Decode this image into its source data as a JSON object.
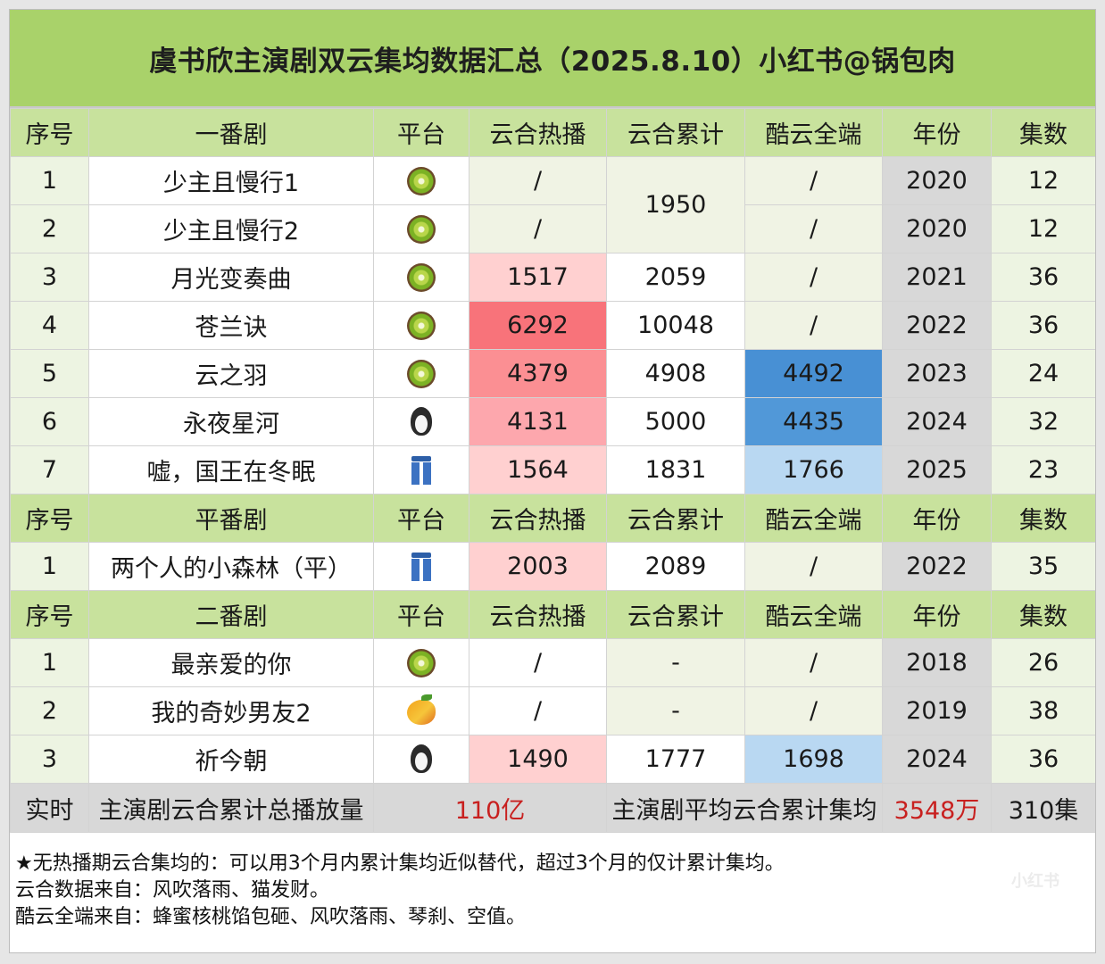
{
  "title": "虞书欣主演剧双云集均数据汇总（2025.8.10）小红书@锅包肉",
  "headers": {
    "lead": [
      "序号",
      "一番剧",
      "平台",
      "云合热播",
      "云合累计",
      "酷云全端",
      "年份",
      "集数"
    ],
    "flat": [
      "序号",
      "平番剧",
      "平台",
      "云合热播",
      "云合累计",
      "酷云全端",
      "年份",
      "集数"
    ],
    "second": [
      "序号",
      "二番剧",
      "平台",
      "云合热播",
      "云合累计",
      "酷云全端",
      "年份",
      "集数"
    ]
  },
  "lead_rows": [
    {
      "idx": "1",
      "name": "少主且慢行1",
      "platform_icon": "kiwi-icon",
      "hot": "/",
      "acc": "1950",
      "kuyun": "/",
      "year": "2020",
      "eps": "12"
    },
    {
      "idx": "2",
      "name": "少主且慢行2",
      "platform_icon": "kiwi-icon",
      "hot": "/",
      "kuyun": "/",
      "year": "2020",
      "eps": "12"
    },
    {
      "idx": "3",
      "name": "月光变奏曲",
      "platform_icon": "kiwi-icon",
      "hot": "1517",
      "acc": "2059",
      "kuyun": "/",
      "year": "2021",
      "eps": "36"
    },
    {
      "idx": "4",
      "name": "苍兰诀",
      "platform_icon": "kiwi-icon",
      "hot": "6292",
      "acc": "10048",
      "kuyun": "/",
      "year": "2022",
      "eps": "36"
    },
    {
      "idx": "5",
      "name": "云之羽",
      "platform_icon": "kiwi-icon",
      "hot": "4379",
      "acc": "4908",
      "kuyun": "4492",
      "year": "2023",
      "eps": "24"
    },
    {
      "idx": "6",
      "name": "永夜星河",
      "platform_icon": "penguin-icon",
      "hot": "4131",
      "acc": "5000",
      "kuyun": "4435",
      "year": "2024",
      "eps": "32"
    },
    {
      "idx": "7",
      "name": "嘘，国王在冬眠",
      "platform_icon": "jeans-icon",
      "hot": "1564",
      "acc": "1831",
      "kuyun": "1766",
      "year": "2025",
      "eps": "23"
    }
  ],
  "flat_rows": [
    {
      "idx": "1",
      "name": "两个人的小森林（平）",
      "platform_icon": "jeans-icon",
      "hot": "2003",
      "acc": "2089",
      "kuyun": "/",
      "year": "2022",
      "eps": "35"
    }
  ],
  "second_rows": [
    {
      "idx": "1",
      "name": "最亲爱的你",
      "platform_icon": "kiwi-icon",
      "hot": "/",
      "acc": "-",
      "kuyun": "/",
      "year": "2018",
      "eps": "26"
    },
    {
      "idx": "2",
      "name": "我的奇妙男友2",
      "platform_icon": "mango-icon",
      "hot": "/",
      "acc": "-",
      "kuyun": "/",
      "year": "2019",
      "eps": "38"
    },
    {
      "idx": "3",
      "name": "祈今朝",
      "platform_icon": "penguin-icon",
      "hot": "1490",
      "acc": "1777",
      "kuyun": "1698",
      "year": "2024",
      "eps": "36"
    }
  ],
  "summary": {
    "label": "实时",
    "total_label": "主演剧云合累计总播放量",
    "total_value": "110亿",
    "avg_label": "主演剧平均云合累计集均",
    "avg_value": "3548万",
    "episodes": "310集"
  },
  "notes": [
    "★无热播期云合集均的：可以用3个月内累计集均近似替代，超过3个月的仅计累计集均。",
    "云合数据来自：风吹落雨、猫发财。",
    "酷云全端来自：蜂蜜核桃馅包砸、风吹落雨、琴刹、空值。"
  ],
  "watermark": "小红书",
  "colors": {
    "title_bg": "#a9d26a",
    "header_bg": "#c8e29d",
    "hot_strong": "#f8737a",
    "hot_light": "#ffd0d0",
    "kuyun_strong": "#4890d4",
    "kuyun_light": "#b9d8f2",
    "summary_value": "#c8201f"
  }
}
